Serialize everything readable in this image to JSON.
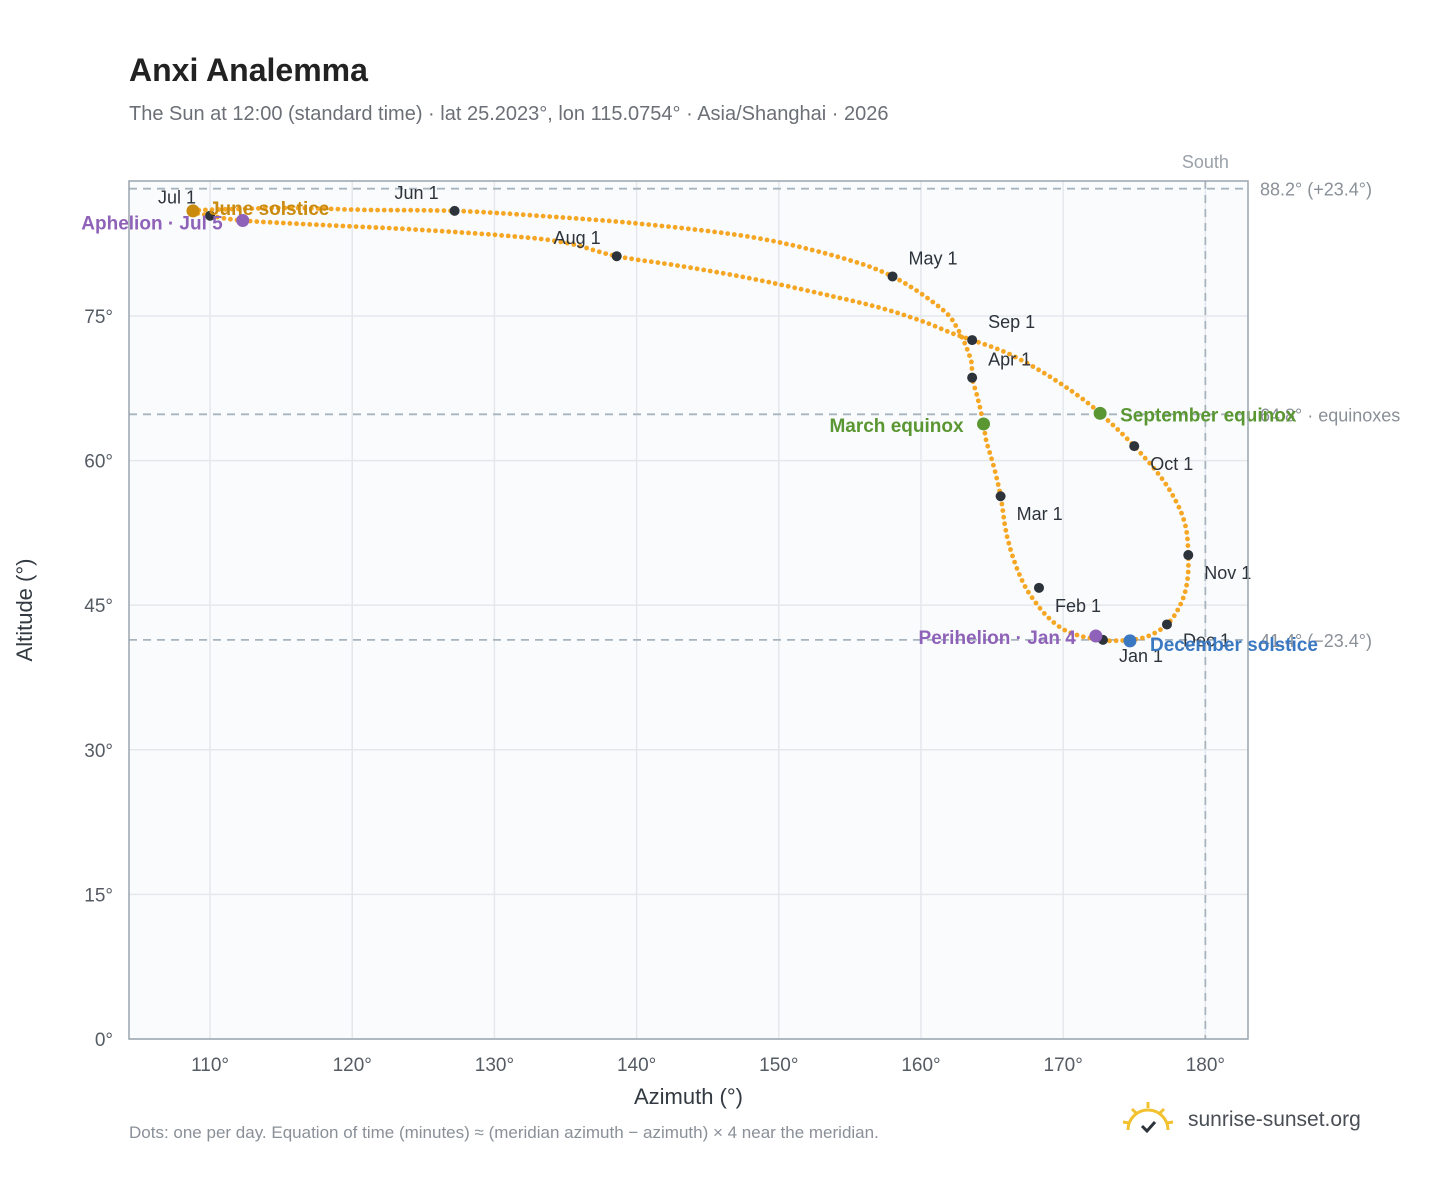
{
  "title": "Anxi Analemma",
  "subtitle": "The Sun at 12:00 (standard time) · lat 25.2023°, lon 115.0754° · Asia/Shanghai · 2026",
  "footnote": "Dots: one per day. Equation of time (minutes) ≈ (meridian azimuth − azimuth) × 4 near the meridian.",
  "brand": {
    "text": "sunrise-sunset.org",
    "logo_icon": "sun-logo-icon",
    "logo_color": "#f2c12e"
  },
  "colors": {
    "path": "#f5a623",
    "month_dot": "#2d333b",
    "solstice_june": "#c98a0d",
    "solstice_december": "#3a78c2",
    "equinox": "#5a9632",
    "apsis": "#8e62b8",
    "reference_line": "#a8b4be",
    "plot_bg": "#f9fbfd",
    "grid": "#e4e8ec"
  },
  "chart_data": {
    "type": "scatter",
    "title": "Anxi Analemma",
    "xlabel": "Azimuth (°)",
    "ylabel": "Altitude (°)",
    "xlim": [
      104.3,
      183.0
    ],
    "ylim": [
      0,
      89
    ],
    "xticks": [
      110,
      120,
      130,
      140,
      150,
      160,
      170,
      180
    ],
    "xtick_labels": [
      "110°",
      "120°",
      "130°",
      "140°",
      "150°",
      "160°",
      "170°",
      "180°"
    ],
    "yticks": [
      0,
      15,
      30,
      45,
      60,
      75
    ],
    "ytick_labels": [
      "0°",
      "15°",
      "30°",
      "45°",
      "60°",
      "75°"
    ],
    "grid": true,
    "path_points": [
      [
        172.8,
        41.4
      ],
      [
        172.3,
        41.5
      ],
      [
        171.2,
        41.8
      ],
      [
        170.0,
        42.5
      ],
      [
        168.9,
        43.8
      ],
      [
        168.0,
        45.4
      ],
      [
        167.3,
        47.0
      ],
      [
        166.6,
        49.4
      ],
      [
        166.0,
        52.5
      ],
      [
        165.6,
        56.3
      ],
      [
        165.1,
        59.5
      ],
      [
        164.6,
        62.0
      ],
      [
        164.4,
        63.8
      ],
      [
        164.0,
        66.4
      ],
      [
        163.6,
        68.6
      ],
      [
        163.5,
        70.5
      ],
      [
        162.6,
        73.6
      ],
      [
        161.4,
        75.8
      ],
      [
        158.0,
        79.1
      ],
      [
        154.0,
        81.2
      ],
      [
        148.0,
        83.2
      ],
      [
        140.0,
        84.6
      ],
      [
        133.0,
        85.4
      ],
      [
        127.2,
        85.9
      ],
      [
        121.0,
        86.0
      ],
      [
        116.0,
        86.2
      ],
      [
        112.0,
        86.1
      ],
      [
        108.8,
        85.9
      ],
      [
        110.0,
        85.4
      ],
      [
        112.3,
        84.9
      ],
      [
        117.0,
        84.5
      ],
      [
        124.0,
        84.0
      ],
      [
        131.0,
        83.3
      ],
      [
        135.0,
        82.6
      ],
      [
        138.6,
        81.2
      ],
      [
        143.0,
        80.2
      ],
      [
        148.0,
        78.9
      ],
      [
        153.0,
        77.3
      ],
      [
        157.0,
        75.9
      ],
      [
        160.0,
        74.5
      ],
      [
        162.2,
        73.2
      ],
      [
        163.6,
        72.5
      ],
      [
        166.0,
        71.2
      ],
      [
        168.4,
        69.3
      ],
      [
        170.8,
        67.0
      ],
      [
        172.6,
        64.9
      ],
      [
        175.0,
        61.5
      ],
      [
        177.2,
        57.6
      ],
      [
        178.5,
        53.8
      ],
      [
        178.8,
        50.2
      ],
      [
        178.7,
        47.2
      ],
      [
        178.2,
        44.9
      ],
      [
        177.3,
        43.0
      ],
      [
        176.0,
        41.8
      ],
      [
        174.7,
        41.4
      ],
      [
        173.2,
        41.3
      ],
      [
        172.8,
        41.4
      ]
    ],
    "month_markers": [
      {
        "label": "Jan 1",
        "az": 172.8,
        "alt": 41.4
      },
      {
        "label": "Feb 1",
        "az": 168.3,
        "alt": 46.8
      },
      {
        "label": "Mar 1",
        "az": 165.6,
        "alt": 56.3
      },
      {
        "label": "Apr 1",
        "az": 163.6,
        "alt": 68.6
      },
      {
        "label": "May 1",
        "az": 158.0,
        "alt": 79.1
      },
      {
        "label": "Jun 1",
        "az": 127.2,
        "alt": 85.9
      },
      {
        "label": "Jul 1",
        "az": 110.0,
        "alt": 85.4
      },
      {
        "label": "Aug 1",
        "az": 138.6,
        "alt": 81.2
      },
      {
        "label": "Sep 1",
        "az": 163.6,
        "alt": 72.5
      },
      {
        "label": "Oct 1",
        "az": 175.0,
        "alt": 61.5
      },
      {
        "label": "Nov 1",
        "az": 178.8,
        "alt": 50.2
      },
      {
        "label": "Dec 1",
        "az": 177.3,
        "alt": 43.0
      }
    ],
    "events": [
      {
        "label": "June solstice",
        "az": 108.8,
        "alt": 85.9,
        "kind": "solstice_june"
      },
      {
        "label": "Aphelion · Jul 5",
        "az": 112.3,
        "alt": 84.9,
        "kind": "apsis"
      },
      {
        "label": "March equinox",
        "az": 164.4,
        "alt": 63.8,
        "kind": "equinox"
      },
      {
        "label": "September equinox",
        "az": 172.6,
        "alt": 64.9,
        "kind": "equinox"
      },
      {
        "label": "Perihelion · Jan 4",
        "az": 172.3,
        "alt": 41.8,
        "kind": "apsis"
      },
      {
        "label": "December solstice",
        "az": 174.7,
        "alt": 41.3,
        "kind": "solstice_december"
      }
    ],
    "reference_lines": [
      {
        "label": "88.2° (+23.4°)",
        "alt": 88.2
      },
      {
        "label": "64.8° · equinoxes",
        "alt": 64.8
      },
      {
        "label": "41.4° (−23.4°)",
        "alt": 41.4
      }
    ],
    "meridian": {
      "label": "South",
      "az": 180
    }
  }
}
